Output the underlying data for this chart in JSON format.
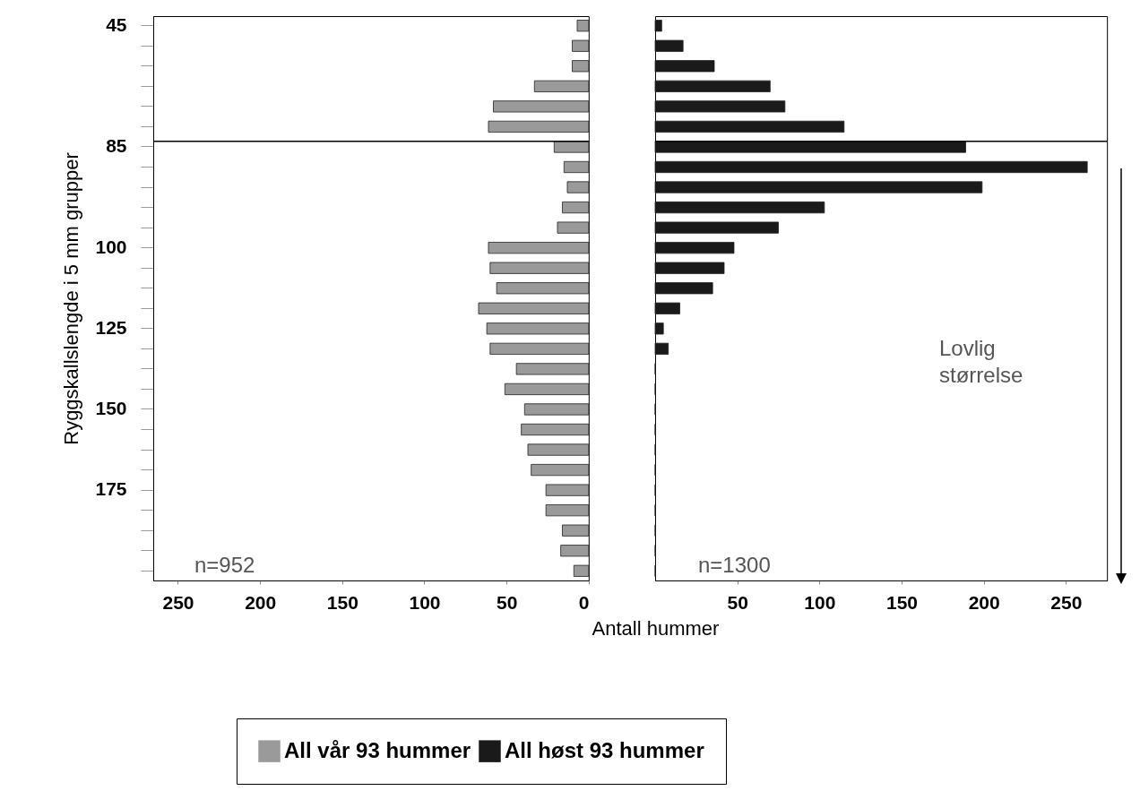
{
  "chart_data": [
    {
      "type": "bar",
      "orientation": "horizontal",
      "ylabel": "Ryggskallslengde i 5 mm grupper",
      "categories": [
        "45",
        null,
        null,
        null,
        null,
        null,
        "85",
        null,
        null,
        null,
        null,
        "100",
        null,
        null,
        null,
        "125",
        null,
        null,
        null,
        "150",
        null,
        null,
        null,
        "175",
        null,
        null,
        null,
        null
      ],
      "series": [
        {
          "name": "All vår 93 hummer",
          "color": "#9a9a9a",
          "values": [
            7,
            10,
            10,
            33,
            58,
            61,
            21,
            15,
            13,
            16,
            19,
            61,
            60,
            56,
            67,
            62,
            60,
            44,
            51,
            39,
            41,
            37,
            35,
            26,
            26,
            16,
            17,
            9
          ]
        }
      ],
      "xlim": [
        265,
        0
      ],
      "xticks": [
        250,
        200,
        150,
        100,
        50,
        0
      ],
      "ref_lines": [
        {
          "axis": "y",
          "value": "85"
        }
      ],
      "annotations": [
        "n=952"
      ],
      "legend": "bottom",
      "grid": false
    },
    {
      "type": "bar",
      "orientation": "horizontal",
      "xlabel": "Antall hummer",
      "categories": [
        "45",
        null,
        null,
        null,
        null,
        null,
        "85",
        null,
        null,
        null,
        null,
        "100",
        null,
        null,
        null,
        "125",
        null,
        null,
        null,
        "150",
        null,
        null,
        null,
        "175",
        null,
        null,
        null,
        null
      ],
      "series": [
        {
          "name": "All høst 93 hummer",
          "color": "#1a1a1a",
          "values": [
            4,
            17,
            36,
            70,
            79,
            115,
            189,
            263,
            199,
            103,
            75,
            48,
            42,
            35,
            15,
            5,
            8,
            0,
            0,
            0,
            0,
            0,
            0,
            0,
            0,
            0,
            0,
            0
          ]
        }
      ],
      "xlim": [
        0,
        275
      ],
      "xticks": [
        50,
        100,
        150,
        200,
        250
      ],
      "tick_labels": "x",
      "ref_lines": [
        {
          "axis": "y",
          "value": "85"
        }
      ],
      "annotations": [
        "n=1300",
        "Lovlig størrelse"
      ],
      "legend": "bottom",
      "grid": false
    }
  ]
}
